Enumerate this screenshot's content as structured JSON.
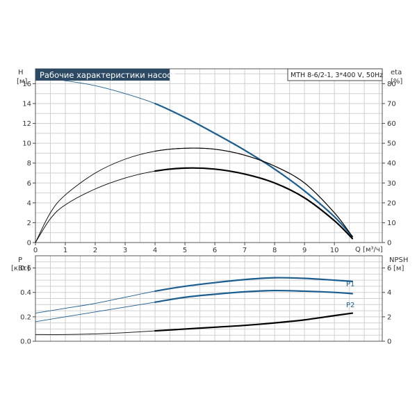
{
  "title": "Рабочие характеристики насоса",
  "model": "MTH 8-6/2-1, 3*400 V, 50Hz",
  "colors": {
    "blue": "#1a5d8f",
    "black": "#000000",
    "title_bg": "#2c4a63"
  },
  "chart_data": [
    {
      "type": "line",
      "name": "upper",
      "y_left": {
        "label": "H",
        "unit": "[м]",
        "ticks": [
          "0",
          "2",
          "4",
          "6",
          "8",
          "10",
          "12",
          "14",
          "16"
        ],
        "lim": [
          0,
          17.5
        ]
      },
      "y_right": {
        "label": "eta",
        "unit": "[%]",
        "ticks": [
          "0",
          "10",
          "20",
          "30",
          "40",
          "50",
          "60",
          "70",
          "80"
        ],
        "lim": [
          0,
          87.5
        ]
      },
      "x": {
        "label": "Q [м³/ч]",
        "ticks": [
          "0",
          "1",
          "2",
          "3",
          "4",
          "5",
          "6",
          "7",
          "8",
          "9",
          "10"
        ],
        "lim": [
          0,
          11.6
        ]
      },
      "grid": true,
      "series": [
        {
          "axis": "left",
          "color": "#1a5d8f",
          "points": [
            [
              0,
              16.6
            ],
            [
              1,
              16.3
            ],
            [
              2,
              15.8
            ],
            [
              3,
              15.0
            ],
            [
              4,
              14.0
            ],
            [
              5,
              12.6
            ],
            [
              6,
              11.0
            ],
            [
              7,
              9.3
            ],
            [
              8,
              7.4
            ],
            [
              9,
              5.2
            ],
            [
              10,
              2.6
            ],
            [
              10.6,
              0.6
            ]
          ]
        },
        {
          "axis": "right",
          "color": "#000000",
          "points": [
            [
              0,
              0
            ],
            [
              0.5,
              15
            ],
            [
              1,
              24
            ],
            [
              2,
              35
            ],
            [
              3,
              42
            ],
            [
              4,
              46
            ],
            [
              5,
              47.5
            ],
            [
              6,
              47
            ],
            [
              7,
              44
            ],
            [
              8,
              38.5
            ],
            [
              9,
              30
            ],
            [
              10,
              15
            ],
            [
              10.6,
              3
            ]
          ]
        },
        {
          "axis": "right",
          "color": "#000000",
          "points": [
            [
              0,
              0
            ],
            [
              0.5,
              12
            ],
            [
              1,
              19
            ],
            [
              2,
              27
            ],
            [
              3,
              32.5
            ],
            [
              4,
              36
            ],
            [
              5,
              37.5
            ],
            [
              6,
              37
            ],
            [
              7,
              34.5
            ],
            [
              8,
              30
            ],
            [
              9,
              22.5
            ],
            [
              10,
              11
            ],
            [
              10.6,
              2
            ]
          ]
        }
      ]
    },
    {
      "type": "line",
      "name": "lower",
      "y_left": {
        "label": "P",
        "unit": "[кВт]",
        "ticks": [
          "0.0",
          "0.2",
          "0.4",
          "0.6"
        ],
        "lim": [
          0,
          0.7
        ]
      },
      "y_right": {
        "label": "NPSH",
        "unit": "[м]",
        "ticks": [
          "0",
          "2",
          "4",
          "6"
        ],
        "lim": [
          0,
          7
        ]
      },
      "x": {
        "lim": [
          0,
          11.6
        ]
      },
      "grid": true,
      "series": [
        {
          "name": "P1",
          "axis": "left",
          "color": "#1a5d8f",
          "points": [
            [
              0,
              0.23
            ],
            [
              1,
              0.27
            ],
            [
              2,
              0.31
            ],
            [
              3,
              0.36
            ],
            [
              4,
              0.41
            ],
            [
              5,
              0.45
            ],
            [
              6,
              0.48
            ],
            [
              7,
              0.505
            ],
            [
              8,
              0.52
            ],
            [
              9,
              0.515
            ],
            [
              10,
              0.5
            ],
            [
              10.6,
              0.49
            ]
          ]
        },
        {
          "name": "P2",
          "axis": "left",
          "color": "#1a5d8f",
          "points": [
            [
              0,
              0.16
            ],
            [
              1,
              0.2
            ],
            [
              2,
              0.24
            ],
            [
              3,
              0.28
            ],
            [
              4,
              0.32
            ],
            [
              5,
              0.36
            ],
            [
              6,
              0.385
            ],
            [
              7,
              0.405
            ],
            [
              8,
              0.415
            ],
            [
              9,
              0.41
            ],
            [
              10,
              0.4
            ],
            [
              10.6,
              0.39
            ]
          ]
        },
        {
          "axis": "right",
          "color": "#000000",
          "points": [
            [
              0,
              0.55
            ],
            [
              1,
              0.55
            ],
            [
              2,
              0.6
            ],
            [
              3,
              0.7
            ],
            [
              4,
              0.85
            ],
            [
              5,
              1.0
            ],
            [
              6,
              1.15
            ],
            [
              7,
              1.3
            ],
            [
              8,
              1.5
            ],
            [
              9,
              1.75
            ],
            [
              10,
              2.1
            ],
            [
              10.6,
              2.3
            ]
          ]
        }
      ]
    }
  ]
}
